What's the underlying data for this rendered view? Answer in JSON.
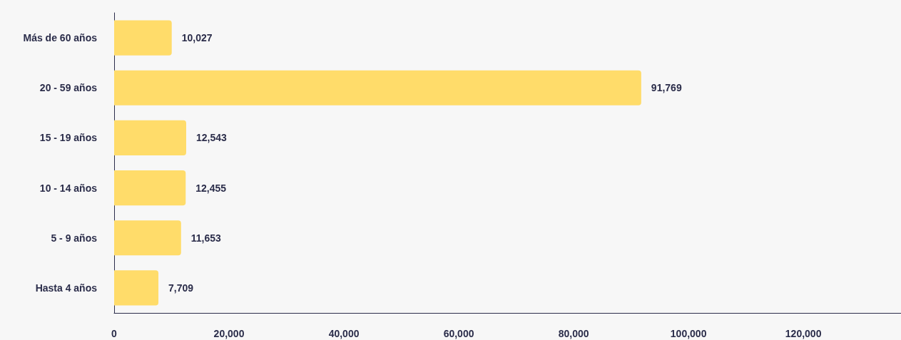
{
  "chart_data": {
    "type": "bar",
    "orientation": "horizontal",
    "categories": [
      "Más de 60 años",
      "20 - 59 años",
      "15 - 19 años",
      "10 - 14 años",
      "5 - 9 años",
      "Hasta 4 años"
    ],
    "values": [
      10027,
      91769,
      12543,
      12455,
      11653,
      7709
    ],
    "color": "#ffdc6a",
    "xlim": [
      0,
      137000
    ],
    "xticks": [
      {
        "value": 0,
        "label": "0"
      },
      {
        "value": 20000,
        "label": "20,000"
      },
      {
        "value": 40000,
        "label": "40,000"
      },
      {
        "value": 60000,
        "label": "60,000"
      },
      {
        "value": 80000,
        "label": "80,000"
      },
      {
        "value": 100000,
        "label": "100,000"
      },
      {
        "value": 120000,
        "label": "120,000"
      }
    ],
    "value_labels": [
      "10,027",
      "91,769",
      "12,543",
      "12,455",
      "11,653",
      "7,709"
    ],
    "grid": false
  }
}
